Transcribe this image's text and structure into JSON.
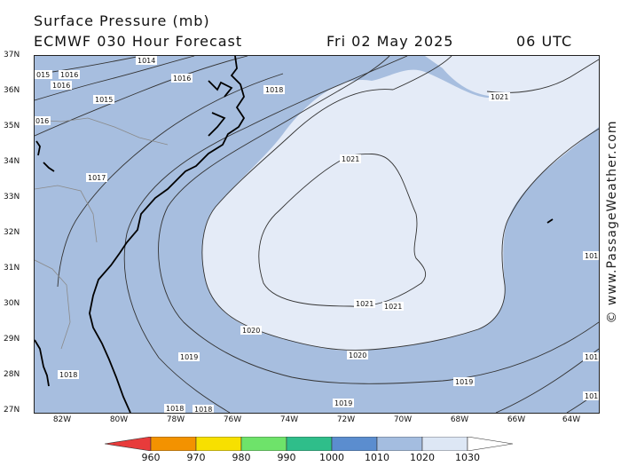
{
  "header": {
    "title": "Surface Pressure (mb)",
    "model": "ECMWF 030 Hour Forecast",
    "date": "Fri 02 May 2025",
    "time": "06 UTC"
  },
  "credit": "© www.PassageWeather.com",
  "lat_labels": [
    "37N",
    "36N",
    "35N",
    "34N",
    "33N",
    "32N",
    "31N",
    "30N",
    "29N",
    "28N",
    "27N"
  ],
  "lon_labels": [
    "82W",
    "80W",
    "78W",
    "76W",
    "74W",
    "72W",
    "70W",
    "68W",
    "66W",
    "64W"
  ],
  "colorbar": {
    "ticks": [
      "960",
      "970",
      "980",
      "990",
      "1000",
      "1010",
      "1020",
      "1030"
    ],
    "colors": [
      "#e83b3b",
      "#f39200",
      "#f7e000",
      "#6ee36a",
      "#2fbe8a",
      "#5b8dcf",
      "#a4bde0",
      "#dde7f5"
    ]
  },
  "fill_colors": {
    "land": "#a7bedf",
    "high": "#e4ebf7",
    "coast": "#000000",
    "state_border": "#888888"
  },
  "isobars": [
    {
      "label": "1014"
    },
    {
      "label": "1015"
    },
    {
      "label": "1016"
    },
    {
      "label": "1017"
    },
    {
      "label": "1018"
    },
    {
      "label": "1019"
    },
    {
      "label": "1020"
    },
    {
      "label": "1021"
    },
    {
      "label": "101"
    }
  ],
  "isobar_labels": {
    "l1014": "1014",
    "l1015a": "015",
    "l1016a": "1016",
    "l1016b": "1016",
    "l1016c": "1016",
    "l1015b": "1015",
    "l1018a": "1018",
    "l1018b": "1018",
    "l1018c": "1018",
    "l1018d": "1018",
    "l1017": "1017",
    "l1019a": "1019",
    "l1019b": "1019",
    "l1019c": "1019",
    "l1020a": "1020",
    "l1020b": "1020",
    "l1021a": "1021",
    "l1021b": "1021",
    "l1021c": "1021",
    "l1021d": "1021",
    "l101a": "101",
    "l101b": "101",
    "l101c": "101",
    "l1016d": "016"
  }
}
